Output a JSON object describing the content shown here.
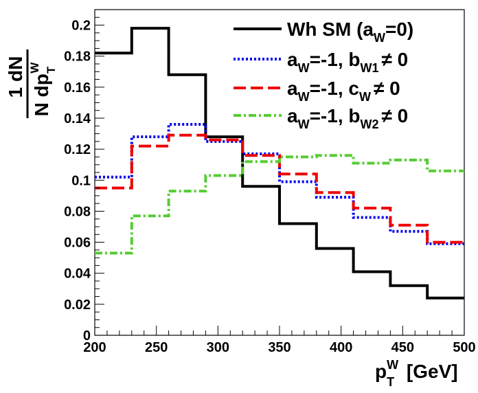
{
  "chart_data": {
    "type": "line",
    "style": "step-histogram",
    "title": "",
    "x_bin_edges": [
      200,
      230,
      260,
      290,
      320,
      350,
      380,
      410,
      440,
      470,
      500
    ],
    "xlim": [
      200,
      500
    ],
    "ylim": [
      0,
      0.21
    ],
    "x_ticks": [
      200,
      250,
      300,
      350,
      400,
      450,
      500
    ],
    "x_tick_labels": [
      "200",
      "250",
      "300",
      "350",
      "400",
      "450",
      "500"
    ],
    "y_ticks": [
      0,
      0.02,
      0.04,
      0.06,
      0.08,
      0.1,
      0.12,
      0.14,
      0.16,
      0.18,
      0.2
    ],
    "y_tick_labels": [
      "0",
      "0.02",
      "0.04",
      "0.06",
      "0.08",
      "0.1",
      "0.12",
      "0.14",
      "0.16",
      "0.18",
      "0.2"
    ],
    "xlabel": {
      "main": "p",
      "sub": "T",
      "sup": "W",
      "rest": " [GeV]"
    },
    "ylabel": {
      "numerator": "1  dN",
      "den_main": "N dp",
      "den_sub": "T",
      "den_sup": "W"
    },
    "legend_position": "top-right",
    "series": [
      {
        "name": "Wh SM (a_W=0)",
        "color": "#000000",
        "dash": "solid",
        "values": [
          0.182,
          0.198,
          0.168,
          0.128,
          0.096,
          0.072,
          0.056,
          0.041,
          0.032,
          0.024
        ],
        "legend": [
          {
            "text": "Wh SM (a",
            "baseline": "0"
          },
          {
            "text": "W",
            "baseline": "-6"
          },
          {
            "text": "=0)",
            "baseline": "0"
          }
        ]
      },
      {
        "name": "a_W=-1, b_W1 ≠ 0",
        "color": "#0000ee",
        "dash": "dotted",
        "values": [
          0.102,
          0.128,
          0.136,
          0.125,
          0.117,
          0.099,
          0.089,
          0.076,
          0.067,
          0.059
        ],
        "legend": [
          {
            "text": "a",
            "baseline": "0"
          },
          {
            "text": "W",
            "baseline": "-6"
          },
          {
            "text": "=-1, b",
            "baseline": "0"
          },
          {
            "text": "W1",
            "baseline": "-6"
          },
          {
            "text": "≠ 0",
            "baseline": "0"
          }
        ]
      },
      {
        "name": "a_W=-1, c_W ≠ 0",
        "color": "#ee0000",
        "dash": "dashed",
        "values": [
          0.095,
          0.122,
          0.129,
          0.126,
          0.116,
          0.104,
          0.092,
          0.082,
          0.071,
          0.06
        ],
        "legend": [
          {
            "text": "a",
            "baseline": "0"
          },
          {
            "text": "W",
            "baseline": "-6"
          },
          {
            "text": "=-1, c",
            "baseline": "0"
          },
          {
            "text": "W",
            "baseline": "-6"
          },
          {
            "text": "≠ 0",
            "baseline": "0"
          }
        ]
      },
      {
        "name": "a_W=-1, b_W2 ≠ 0",
        "color": "#55cc33",
        "dash": "dash-dot",
        "values": [
          0.053,
          0.077,
          0.093,
          0.103,
          0.112,
          0.115,
          0.116,
          0.111,
          0.113,
          0.106
        ],
        "legend": [
          {
            "text": "a",
            "baseline": "0"
          },
          {
            "text": "W",
            "baseline": "-6"
          },
          {
            "text": "=-1, b",
            "baseline": "0"
          },
          {
            "text": "W2",
            "baseline": "-6"
          },
          {
            "text": "≠ 0",
            "baseline": "0"
          }
        ]
      }
    ]
  }
}
